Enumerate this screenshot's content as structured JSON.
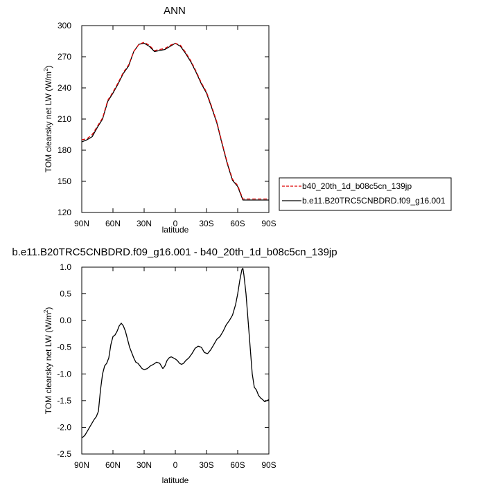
{
  "chart_data": [
    {
      "type": "line",
      "title": "ANN",
      "xlabel": "latitude",
      "ylabel_main": "TOM clearsky net LW (W/m",
      "ylabel_sup": "2",
      "ylabel_close": ")",
      "xlim": [
        -90,
        90
      ],
      "ylim": [
        120,
        300
      ],
      "x_ticks": [
        -90,
        -60,
        -30,
        0,
        30,
        60,
        90
      ],
      "x_tick_labels": [
        "90N",
        "60N",
        "30N",
        "0",
        "30S",
        "60S",
        "90S"
      ],
      "y_ticks": [
        120,
        150,
        180,
        210,
        240,
        270,
        300
      ],
      "y_tick_labels": [
        "120",
        "150",
        "180",
        "210",
        "240",
        "270",
        "300"
      ],
      "grid": false,
      "legend_position": "right, outside plot",
      "x": [
        -90,
        -85,
        -80,
        -75,
        -70,
        -65,
        -60,
        -55,
        -50,
        -45,
        -40,
        -35,
        -30,
        -25,
        -20,
        -15,
        -10,
        -5,
        0,
        5,
        10,
        15,
        20,
        25,
        30,
        35,
        40,
        45,
        50,
        55,
        60,
        65,
        70,
        75,
        80,
        85,
        90
      ],
      "series": [
        {
          "name": "b40_20th_1d_b08c5cn_139jp",
          "color": "#dd0000",
          "dash": "dashed",
          "values": [
            190,
            191,
            195,
            203,
            211,
            228,
            236,
            245,
            255,
            262,
            275,
            282,
            284,
            281,
            276,
            277,
            278,
            281,
            283,
            281,
            274,
            266,
            256,
            245,
            236,
            222,
            207,
            187,
            168,
            152,
            146,
            133,
            133,
            133,
            133,
            133,
            133
          ]
        },
        {
          "name": "b.e11.B20TRC5CNBDRD.f09_g16.001",
          "color": "#000000",
          "dash": "solid",
          "values": [
            188,
            190,
            193,
            202,
            210,
            227,
            235,
            244,
            254,
            261,
            275,
            282,
            283,
            280,
            275,
            276,
            277,
            280,
            283,
            280,
            273,
            265,
            255,
            244,
            235,
            221,
            206,
            186,
            167,
            151,
            145,
            132,
            132,
            132,
            132,
            132,
            132
          ]
        }
      ]
    },
    {
      "type": "line",
      "title": "b.e11.B20TRC5CNBDRD.f09_g16.001 - b40_20th_1d_b08c5cn_139jp",
      "xlabel": "latitude",
      "ylabel_main": "TOM clearsky net LW (W/m",
      "ylabel_sup": "2",
      "ylabel_close": ")",
      "xlim": [
        -90,
        90
      ],
      "ylim": [
        -2.5,
        1.0
      ],
      "x_ticks": [
        -90,
        -60,
        -30,
        0,
        30,
        60,
        90
      ],
      "x_tick_labels": [
        "90N",
        "60N",
        "30N",
        "0",
        "30S",
        "60S",
        "90S"
      ],
      "y_ticks": [
        -2.5,
        -2.0,
        -1.5,
        -1.0,
        -0.5,
        0.0,
        0.5,
        1.0
      ],
      "y_tick_labels": [
        "-2.5",
        "-2.0",
        "-1.5",
        "-1.0",
        "-0.5",
        "0.0",
        "0.5",
        "1.0"
      ],
      "grid": false,
      "x": [
        -90,
        -87,
        -84,
        -81,
        -78,
        -76,
        -74,
        -72,
        -70,
        -68,
        -66,
        -64,
        -62,
        -60,
        -58,
        -56,
        -54,
        -52,
        -50,
        -48,
        -46,
        -44,
        -42,
        -40,
        -38,
        -36,
        -34,
        -32,
        -30,
        -27,
        -24,
        -21,
        -18,
        -15,
        -12,
        -10,
        -8,
        -6,
        -4,
        -2,
        0,
        2,
        4,
        6,
        8,
        10,
        13,
        16,
        19,
        22,
        25,
        28,
        31,
        34,
        37,
        40,
        43,
        46,
        49,
        52,
        55,
        58,
        60,
        62,
        64,
        65,
        66,
        68,
        70,
        72,
        74,
        76,
        78,
        80,
        82,
        84,
        86,
        88,
        90
      ],
      "values": [
        -2.2,
        -2.15,
        -2.05,
        -1.95,
        -1.85,
        -1.8,
        -1.7,
        -1.3,
        -1.0,
        -0.85,
        -0.8,
        -0.7,
        -0.45,
        -0.3,
        -0.27,
        -0.2,
        -0.1,
        -0.05,
        -0.1,
        -0.2,
        -0.35,
        -0.5,
        -0.6,
        -0.7,
        -0.78,
        -0.8,
        -0.85,
        -0.9,
        -0.92,
        -0.9,
        -0.85,
        -0.82,
        -0.78,
        -0.8,
        -0.9,
        -0.85,
        -0.75,
        -0.7,
        -0.68,
        -0.7,
        -0.72,
        -0.75,
        -0.8,
        -0.82,
        -0.8,
        -0.75,
        -0.7,
        -0.62,
        -0.52,
        -0.48,
        -0.5,
        -0.6,
        -0.62,
        -0.55,
        -0.45,
        -0.35,
        -0.3,
        -0.2,
        -0.08,
        0.0,
        0.1,
        0.3,
        0.5,
        0.75,
        0.95,
        0.98,
        0.85,
        0.5,
        0.0,
        -0.5,
        -1.0,
        -1.25,
        -1.3,
        -1.4,
        -1.45,
        -1.48,
        -1.52,
        -1.5,
        -1.48
      ]
    }
  ]
}
